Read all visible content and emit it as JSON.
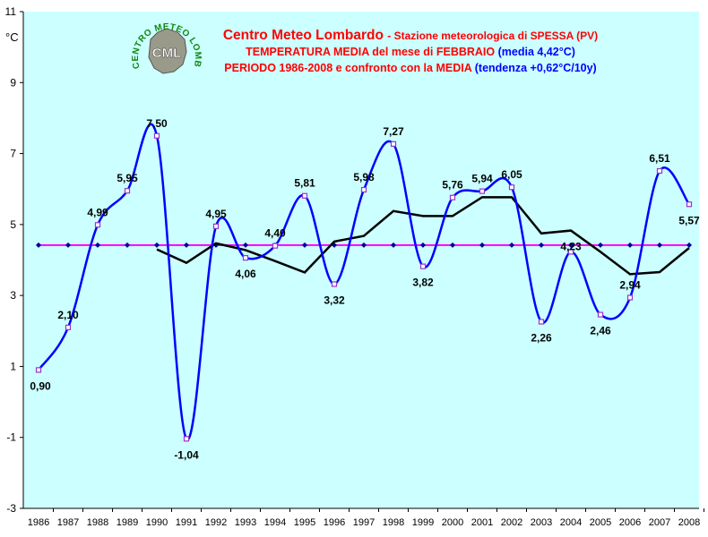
{
  "header": {
    "org": "Centro Meteo Lombardo",
    "station": "- Stazione meteorologica di SPESSA (PV)",
    "line2_red": "TEMPERATURA MEDIA del mese di FEBBRAIO",
    "line2_blue": "(media 4,42°C)",
    "line3_red": "PERIODO 1986-2008 e confronto con la MEDIA",
    "line3_blue": "(tendenza +0,62°C/10y)"
  },
  "logo": {
    "acronym": "CML",
    "ring_text": "CENTRO METEO LOMBARDO"
  },
  "colors": {
    "background": "#ccffff",
    "temperature_line": "#0000ff",
    "marker": "#9933cc",
    "mean_line": "#ff00ff",
    "moving_average": "#000000"
  },
  "chart_data": {
    "type": "line",
    "ylabel": "°C",
    "ylim": [
      -3,
      11
    ],
    "yticks": [
      "-3",
      "-1",
      "1",
      "3",
      "5",
      "7",
      "9",
      "11"
    ],
    "grid": false,
    "x": [
      "1986",
      "1987",
      "1988",
      "1989",
      "1990",
      "1991",
      "1992",
      "1993",
      "1994",
      "1995",
      "1996",
      "1997",
      "1998",
      "1999",
      "2000",
      "2001",
      "2002",
      "2003",
      "2004",
      "2005",
      "2006",
      "2007",
      "2008"
    ],
    "series": [
      {
        "values": [
          0.9,
          2.1,
          4.99,
          5.95,
          7.5,
          -1.04,
          4.95,
          4.06,
          4.4,
          5.81,
          3.32,
          5.98,
          7.27,
          3.82,
          5.76,
          5.94,
          6.05,
          2.26,
          4.23,
          2.46,
          2.94,
          6.51,
          5.57
        ],
        "data_labels": [
          "0,90",
          "2,10",
          "4,99",
          "5,95",
          "7,50",
          "-1,04",
          "4,95",
          "4,06",
          "4,40",
          "5,81",
          "3,32",
          "5,98",
          "7,27",
          "3,82",
          "5,76",
          "5,94",
          "6,05",
          "2,26",
          "4,23",
          "2,46",
          "2,94",
          "6,51",
          "5,57"
        ]
      },
      {
        "values": [
          4.42,
          4.42,
          4.42,
          4.42,
          4.42,
          4.42,
          4.42,
          4.42,
          4.42,
          4.42,
          4.42,
          4.42,
          4.42,
          4.42,
          4.42,
          4.42,
          4.42,
          4.42,
          4.42,
          4.42,
          4.42,
          4.42,
          4.42
        ]
      },
      {
        "values": [
          null,
          null,
          null,
          null,
          4.3,
          3.92,
          4.47,
          4.28,
          3.97,
          3.65,
          4.52,
          4.68,
          5.38,
          5.24,
          5.24,
          5.77,
          5.77,
          4.75,
          4.83,
          4.23,
          3.6,
          3.66,
          4.34
        ]
      }
    ]
  }
}
